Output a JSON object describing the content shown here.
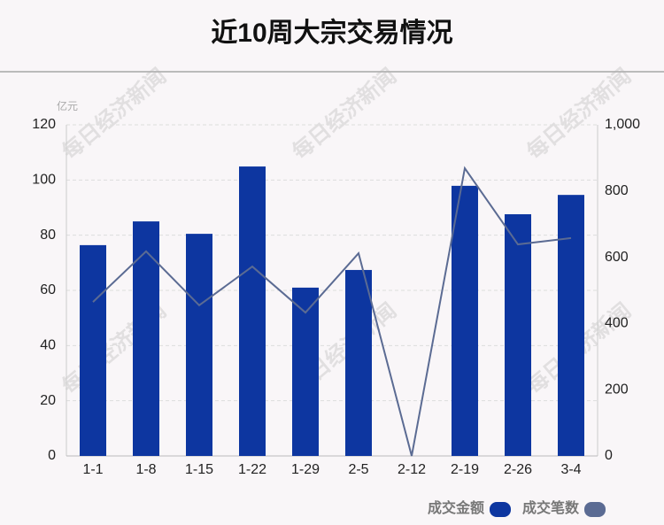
{
  "chart_data": {
    "type": "bar_line",
    "title": "近10周大宗交易情况",
    "y_unit": "亿元",
    "watermark": "每日经济新闻",
    "categories": [
      "1-1",
      "1-8",
      "1-15",
      "1-22",
      "1-29",
      "2-5",
      "2-12",
      "2-19",
      "2-26",
      "3-4"
    ],
    "series": [
      {
        "name": "成交金额",
        "type": "bar",
        "color": "#0d36a0",
        "values": [
          76.4,
          85.0,
          80.5,
          104.9,
          61.0,
          67.4,
          0,
          97.9,
          87.6,
          94.6
        ]
      },
      {
        "name": "成交笔数",
        "type": "line",
        "axis": "y2",
        "color": "#5b6b93",
        "values": [
          465,
          618,
          455,
          572,
          433,
          612,
          0,
          869,
          639,
          658
        ]
      }
    ],
    "ylim": [
      0,
      120
    ],
    "yticks": [
      0,
      20,
      40,
      60,
      80,
      100,
      120
    ],
    "y2lim": [
      0,
      1000
    ],
    "y2ticks": [
      0,
      200,
      400,
      600,
      800,
      {
        "value": 1000,
        "label": "1,000"
      }
    ],
    "grid": true
  }
}
